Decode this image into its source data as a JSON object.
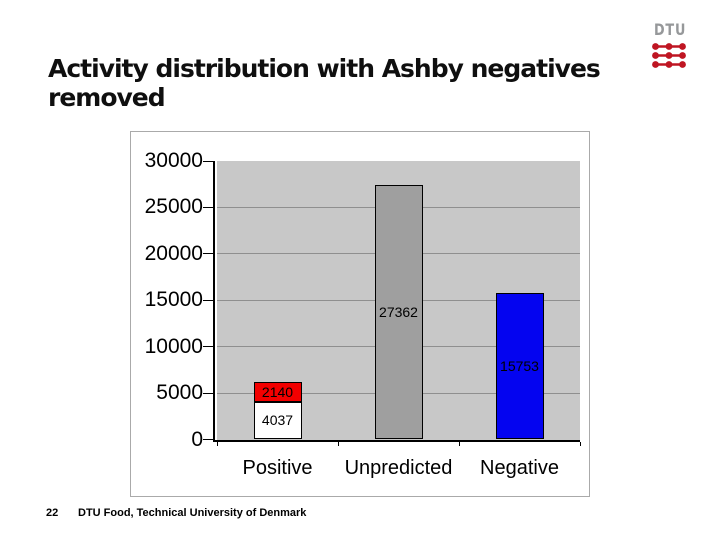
{
  "page": {
    "background": "#ffffff"
  },
  "logo": {
    "text": "DTU",
    "text_color": "#96989a",
    "wave_color": "#bf1522"
  },
  "title": {
    "line1": "Activity distribution with Ashby negatives",
    "line2": "removed",
    "color": "#0f0f0f"
  },
  "footer": {
    "page_number": "22",
    "text": "DTU Food, Technical University of Denmark"
  },
  "chart_data": {
    "type": "bar",
    "stacked": true,
    "title": "",
    "xlabel": "",
    "ylabel": "",
    "categories": [
      "Positive",
      "Unpredicted",
      "Negative"
    ],
    "ylim": [
      0,
      30000
    ],
    "yticks": [
      0,
      5000,
      10000,
      15000,
      20000,
      25000,
      30000
    ],
    "grid": true,
    "legend": "none",
    "plot_bg": "#c8c8c8",
    "gridline_color": "#8f8f8f",
    "axis_color": "#000000",
    "bars": [
      {
        "category": "Positive",
        "segments": [
          {
            "value": 4037,
            "label": "4037",
            "color": "#ffffff",
            "label_color": "#000000"
          },
          {
            "value": 2140,
            "label": "2140",
            "color": "#f20000",
            "label_color": "#000000"
          }
        ]
      },
      {
        "category": "Unpredicted",
        "segments": [
          {
            "value": 27362,
            "label": "27362",
            "color": "#9f9f9f",
            "label_color": "#000000"
          }
        ]
      },
      {
        "category": "Negative",
        "segments": [
          {
            "value": 15753,
            "label": "15753",
            "color": "#0404f0",
            "label_color": "#000000"
          }
        ]
      }
    ]
  }
}
